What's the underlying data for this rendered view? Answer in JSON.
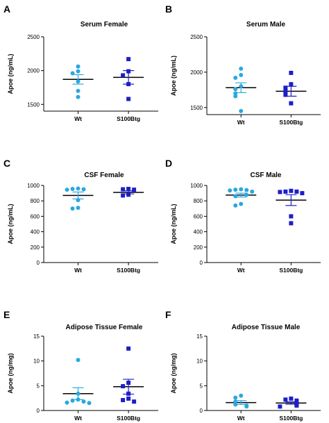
{
  "colors": {
    "wt": "#29A8E0",
    "s100btg": "#1E1EC8",
    "mean": "#000000"
  },
  "marker_shapes": {
    "Wt": "circle",
    "S100Btg": "square"
  },
  "chart_data": [
    {
      "panel": "A",
      "type": "scatter",
      "title": "Serum Female",
      "ylabel": "Apoe (ng/mL)",
      "ylim": [
        1400,
        2500
      ],
      "yticks": [
        1500,
        2000,
        2500
      ],
      "categories": [
        "Wt",
        "S100Btg"
      ],
      "series": [
        {
          "name": "Wt",
          "values": [
            2060,
            1990,
            1960,
            1840,
            1700,
            1610
          ],
          "mean": 1870,
          "sem": 70
        },
        {
          "name": "S100Btg",
          "values": [
            2170,
            1990,
            1930,
            1800,
            1580
          ],
          "mean": 1900,
          "sem": 100
        }
      ]
    },
    {
      "panel": "B",
      "type": "scatter",
      "title": "Serum Male",
      "ylabel": "Apoe (ng/mL)",
      "ylim": [
        1400,
        2500
      ],
      "yticks": [
        1500,
        2000,
        2500
      ],
      "categories": [
        "Wt",
        "S100Btg"
      ],
      "series": [
        {
          "name": "Wt",
          "values": [
            2050,
            1960,
            1920,
            1800,
            1760,
            1700,
            1660,
            1450
          ],
          "mean": 1780,
          "sem": 70
        },
        {
          "name": "S100Btg",
          "values": [
            1990,
            1830,
            1780,
            1730,
            1680,
            1560
          ],
          "mean": 1730,
          "sem": 70
        }
      ]
    },
    {
      "panel": "C",
      "type": "scatter",
      "title": "CSF Female",
      "ylabel": "Apoe (ng/mL)",
      "ylim": [
        0,
        1000
      ],
      "yticks": [
        0,
        200,
        400,
        600,
        800,
        1000
      ],
      "categories": [
        "Wt",
        "S100Btg"
      ],
      "series": [
        {
          "name": "Wt",
          "values": [
            960,
            955,
            950,
            945,
            810,
            710,
            700
          ],
          "mean": 870,
          "sem": 45
        },
        {
          "name": "S100Btg",
          "values": [
            955,
            950,
            945,
            880,
            870
          ],
          "mean": 910,
          "sem": 20
        }
      ]
    },
    {
      "panel": "D",
      "type": "scatter",
      "title": "CSF Male",
      "ylabel": "Apoe (ng/mL)",
      "ylim": [
        0,
        1000
      ],
      "yticks": [
        0,
        200,
        400,
        600,
        800,
        1000
      ],
      "categories": [
        "Wt",
        "S100Btg"
      ],
      "series": [
        {
          "name": "Wt",
          "values": [
            950,
            945,
            940,
            935,
            920,
            880,
            860,
            760,
            740
          ],
          "mean": 875,
          "sem": 25
        },
        {
          "name": "S100Btg",
          "values": [
            930,
            920,
            920,
            915,
            900,
            600,
            510
          ],
          "mean": 810,
          "sem": 70
        }
      ]
    },
    {
      "panel": "E",
      "type": "scatter",
      "title": "Adipose Tissue Female",
      "ylabel": "Apoe (ng/mg)",
      "ylim": [
        0,
        15
      ],
      "yticks": [
        0,
        5,
        10,
        15
      ],
      "categories": [
        "Wt",
        "S100Btg"
      ],
      "series": [
        {
          "name": "Wt",
          "values": [
            10.2,
            3.4,
            2.2,
            2.0,
            1.8,
            1.6,
            1.5
          ],
          "mean": 3.4,
          "sem": 1.2
        },
        {
          "name": "S100Btg",
          "values": [
            12.5,
            5.6,
            4.9,
            3.4,
            2.4,
            2.1,
            1.8
          ],
          "mean": 4.8,
          "sem": 1.5
        }
      ]
    },
    {
      "panel": "F",
      "type": "scatter",
      "title": "Adipose Tissue Male",
      "ylabel": "Apoe (ng/mg)",
      "ylim": [
        0,
        15
      ],
      "yticks": [
        0,
        5,
        10,
        15
      ],
      "categories": [
        "Wt",
        "S100Btg"
      ],
      "series": [
        {
          "name": "Wt",
          "values": [
            3.0,
            2.6,
            1.8,
            1.2,
            1.0,
            0.8
          ],
          "mean": 1.6,
          "sem": 0.4
        },
        {
          "name": "S100Btg",
          "values": [
            2.4,
            2.2,
            2.0,
            1.4,
            1.3,
            1.0,
            0.8
          ],
          "mean": 1.5,
          "sem": 0.25
        }
      ]
    }
  ]
}
